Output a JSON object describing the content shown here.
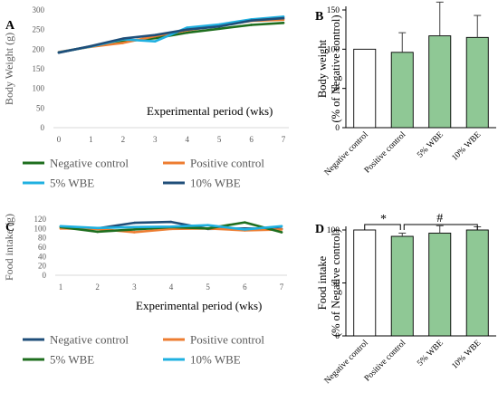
{
  "chart_data": [
    {
      "panel": "A",
      "type": "line",
      "xlabel": "Experimental period (wks)",
      "ylabel": "Body Weight (g)",
      "x": [
        0,
        1,
        2,
        3,
        4,
        5,
        6,
        7
      ],
      "ylim": [
        0,
        300
      ],
      "yticks": [
        0,
        50,
        100,
        150,
        200,
        250,
        300
      ],
      "grid": false,
      "legend_position": "bottom",
      "series": [
        {
          "name": "Negative control",
          "color": "#1e6e1e",
          "values": [
            192,
            207,
            220,
            228,
            242,
            252,
            262,
            267
          ]
        },
        {
          "name": "Positive control",
          "color": "#ed7d31",
          "values": [
            193,
            206,
            216,
            233,
            248,
            260,
            272,
            275
          ]
        },
        {
          "name": "5% WBE",
          "color": "#1fb0e0",
          "values": [
            192,
            207,
            225,
            220,
            255,
            263,
            276,
            283
          ]
        },
        {
          "name": "10% WBE",
          "color": "#1f4e79",
          "values": [
            191,
            208,
            227,
            236,
            250,
            258,
            273,
            279
          ]
        }
      ]
    },
    {
      "panel": "B",
      "type": "bar",
      "ylabel": "Body weight (% of Negative control)",
      "categories": [
        "Negative control",
        "Positive control",
        "5% WBE",
        "10% WBE"
      ],
      "values": [
        100,
        96,
        117,
        115
      ],
      "errors": [
        0,
        25,
        43,
        28
      ],
      "colors": [
        "#ffffff",
        "#8fc895",
        "#8fc895",
        "#8fc895"
      ],
      "ylim": [
        0,
        150
      ],
      "yticks": [
        0,
        50,
        100,
        150
      ]
    },
    {
      "panel": "C",
      "type": "line",
      "xlabel": "Experimental period (wks)",
      "ylabel": "Food intake (g)",
      "x": [
        1,
        2,
        3,
        4,
        5,
        6,
        7
      ],
      "ylim": [
        0,
        120
      ],
      "yticks": [
        0,
        20,
        40,
        60,
        80,
        100,
        120
      ],
      "grid": false,
      "legend_position": "bottom",
      "series": [
        {
          "name": "Negative control",
          "color": "#1f4e79",
          "values": [
            104,
            100,
            112,
            114,
            99,
            100,
            99
          ]
        },
        {
          "name": "Positive control",
          "color": "#ed7d31",
          "values": [
            100,
            99,
            92,
            99,
            100,
            96,
            98
          ]
        },
        {
          "name": "5% WBE",
          "color": "#1e6e1e",
          "values": [
            103,
            93,
            98,
            103,
            100,
            113,
            92
          ]
        },
        {
          "name": "10% WBE",
          "color": "#1fb0e0",
          "values": [
            105,
            101,
            103,
            104,
            107,
            98,
            105
          ]
        }
      ]
    },
    {
      "panel": "D",
      "type": "bar",
      "ylabel": "Food intake (% of Negative control)",
      "categories": [
        "Negative control",
        "Positive control",
        "5% WBE",
        "10% WBE"
      ],
      "values": [
        100,
        94,
        97,
        100
      ],
      "errors": [
        0,
        3,
        7,
        3
      ],
      "colors": [
        "#ffffff",
        "#8fc895",
        "#8fc895",
        "#8fc895"
      ],
      "ylim": [
        0,
        100
      ],
      "yticks": [
        0,
        50,
        100
      ],
      "annotations": [
        "*",
        "#"
      ]
    }
  ]
}
